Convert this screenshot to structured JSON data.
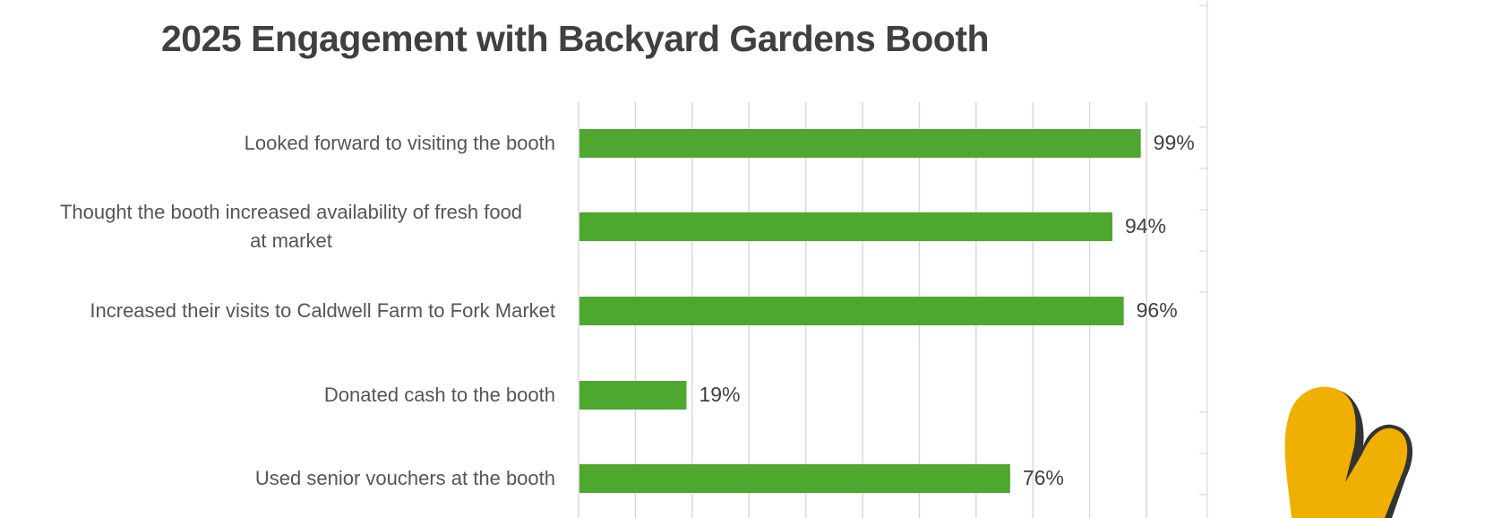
{
  "chart_data": {
    "type": "bar",
    "orientation": "horizontal",
    "title": "2025 Engagement with Backyard Gardens Booth",
    "categories": [
      "Looked forward to visiting the booth",
      "Thought the booth increased availability of fresh food at market",
      "Increased their visits to Caldwell Farm to Fork Market",
      "Donated cash to the booth",
      "Used senior vouchers at the booth"
    ],
    "category_lines": [
      [
        "Looked forward to visiting the booth"
      ],
      [
        "Thought the booth increased availability of fresh food",
        "at market"
      ],
      [
        "Increased their visits to Caldwell Farm to Fork Market"
      ],
      [
        "Donated cash to the booth"
      ],
      [
        "Used senior vouchers at the booth"
      ]
    ],
    "values": [
      99,
      94,
      96,
      19,
      76
    ],
    "data_labels": [
      "99%",
      "94%",
      "96%",
      "19%",
      "76%"
    ],
    "xlim": [
      0,
      100
    ],
    "xlabel": "",
    "ylabel": "",
    "grid": true,
    "legend": "none",
    "colors": {
      "bar": "#4EA72E",
      "grid": "#D9D9D9",
      "text": "#555555",
      "title": "#404040",
      "mascot": "#EFB001",
      "mascot_shadow": "#333333"
    }
  }
}
